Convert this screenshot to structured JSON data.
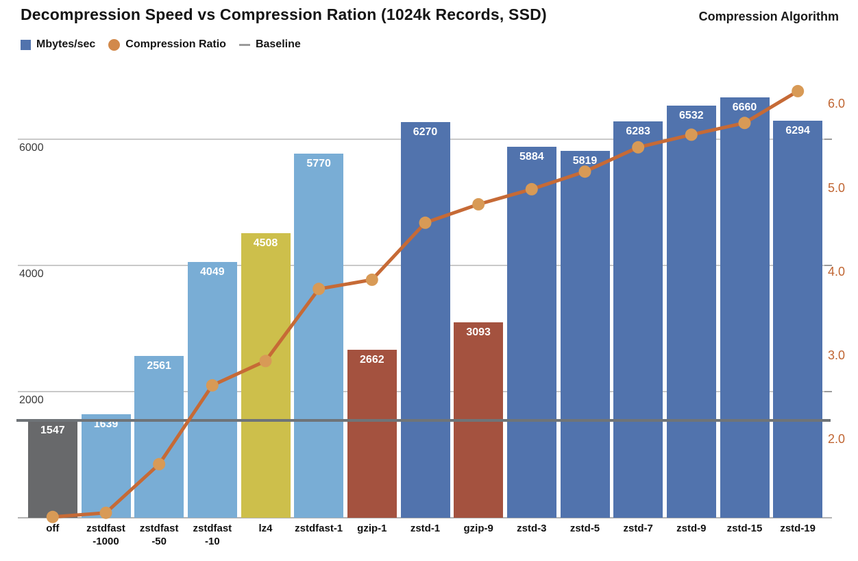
{
  "header": {
    "title": "Decompression Speed vs Compression Ration (1024k Records, SSD)",
    "axis_title": "Compression Algorithm"
  },
  "legend": {
    "items": [
      {
        "label": "Mbytes/sec",
        "marker": "square",
        "color": "#5173ad"
      },
      {
        "label": "Compression Ratio",
        "marker": "circle",
        "color": "#d2894b"
      },
      {
        "label": "Baseline",
        "marker": "dash",
        "color": "#9b9b9b"
      }
    ]
  },
  "chart_data": {
    "type": "bar",
    "title": "Decompression Speed vs Compression Ration (1024k Records, SSD)",
    "xlabel": "Compression Algorithm",
    "categories": [
      "off",
      "zstdfast-1000",
      "zstdfast-50",
      "zstdfast-10",
      "lz4",
      "zstdfast-1",
      "gzip-1",
      "zstd-1",
      "gzip-9",
      "zstd-3",
      "zstd-5",
      "zstd-7",
      "zstd-9",
      "zstd-15",
      "zstd-19"
    ],
    "x_tick_lines": [
      [
        "off"
      ],
      [
        "zstdfast",
        "-1000"
      ],
      [
        "zstdfast",
        "-50"
      ],
      [
        "zstdfast",
        "-10"
      ],
      [
        "lz4"
      ],
      [
        "zstdfast-1"
      ],
      [
        "gzip-1"
      ],
      [
        "zstd-1"
      ],
      [
        "gzip-9"
      ],
      [
        "zstd-3"
      ],
      [
        "zstd-5"
      ],
      [
        "zstd-7"
      ],
      [
        "zstd-9"
      ],
      [
        "zstd-15"
      ],
      [
        "zstd-19"
      ]
    ],
    "series": [
      {
        "name": "Mbytes/sec",
        "type": "bar",
        "values": [
          1547,
          1639,
          2561,
          4049,
          4508,
          5770,
          2662,
          6270,
          3093,
          5884,
          5819,
          6283,
          6532,
          6660,
          6294
        ],
        "bar_color_keys": [
          "gray",
          "lightblue",
          "lightblue",
          "lightblue",
          "yellow",
          "lightblue",
          "red",
          "blue",
          "red",
          "blue",
          "blue",
          "blue",
          "blue",
          "blue",
          "blue"
        ]
      },
      {
        "name": "Compression Ratio",
        "type": "line",
        "values": [
          1.08,
          1.13,
          1.71,
          2.65,
          2.94,
          3.8,
          3.91,
          4.59,
          4.81,
          4.99,
          5.2,
          5.49,
          5.64,
          5.78,
          6.16
        ],
        "line_color": "#c66a36",
        "dot_color": "#d89a56"
      },
      {
        "name": "Baseline",
        "type": "hline",
        "value": 1547,
        "color": "#6f7478"
      }
    ],
    "palette": {
      "gray": "#68696b",
      "lightblue": "#79add5",
      "yellow": "#cdbf4b",
      "red": "#a4523f",
      "blue": "#5173ad"
    },
    "left_axis": {
      "ticks": [
        2000,
        4000,
        6000
      ],
      "max": 7174,
      "label_color": "#3b3b3b"
    },
    "right_axis": {
      "ticks": [
        "2.0",
        "3.0",
        "4.0",
        "5.0",
        "6.0"
      ],
      "range": [
        1.07,
        6.47
      ],
      "color": "#c06532"
    },
    "grid": true,
    "legend_position": "top-left"
  }
}
